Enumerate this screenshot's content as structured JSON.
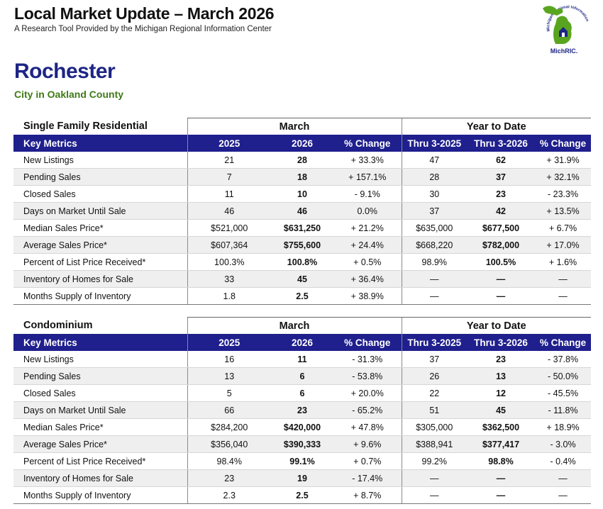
{
  "header": {
    "title": "Local Market Update – March 2026",
    "subtitle": "A Research Tool Provided by the Michigan Regional Information Center",
    "logo_text": "MichRIC.",
    "logo_arc_text": "Michigan Regional Information Center"
  },
  "location": {
    "city": "Rochester",
    "county": "City in Oakland County"
  },
  "tables": [
    {
      "section": "Single Family Residential",
      "group_month": "March",
      "group_ytd": "Year to Date",
      "columns": [
        "Key Metrics",
        "2025",
        "2026",
        "% Change",
        "Thru 3-2025",
        "Thru 3-2026",
        "% Change"
      ],
      "rows": [
        [
          "New Listings",
          "21",
          "28",
          "+ 33.3%",
          "47",
          "62",
          "+ 31.9%"
        ],
        [
          "Pending Sales",
          "7",
          "18",
          "+ 157.1%",
          "28",
          "37",
          "+ 32.1%"
        ],
        [
          "Closed Sales",
          "11",
          "10",
          "- 9.1%",
          "30",
          "23",
          "- 23.3%"
        ],
        [
          "Days on Market Until Sale",
          "46",
          "46",
          "0.0%",
          "37",
          "42",
          "+ 13.5%"
        ],
        [
          "Median Sales Price*",
          "$521,000",
          "$631,250",
          "+ 21.2%",
          "$635,000",
          "$677,500",
          "+ 6.7%"
        ],
        [
          "Average Sales Price*",
          "$607,364",
          "$755,600",
          "+ 24.4%",
          "$668,220",
          "$782,000",
          "+ 17.0%"
        ],
        [
          "Percent of List Price Received*",
          "100.3%",
          "100.8%",
          "+ 0.5%",
          "98.9%",
          "100.5%",
          "+ 1.6%"
        ],
        [
          "Inventory of Homes for Sale",
          "33",
          "45",
          "+ 36.4%",
          "—",
          "—",
          "—"
        ],
        [
          "Months Supply of Inventory",
          "1.8",
          "2.5",
          "+ 38.9%",
          "—",
          "—",
          "—"
        ]
      ]
    },
    {
      "section": "Condominium",
      "group_month": "March",
      "group_ytd": "Year to Date",
      "columns": [
        "Key Metrics",
        "2025",
        "2026",
        "% Change",
        "Thru 3-2025",
        "Thru 3-2026",
        "% Change"
      ],
      "rows": [
        [
          "New Listings",
          "16",
          "11",
          "- 31.3%",
          "37",
          "23",
          "- 37.8%"
        ],
        [
          "Pending Sales",
          "13",
          "6",
          "- 53.8%",
          "26",
          "13",
          "- 50.0%"
        ],
        [
          "Closed Sales",
          "5",
          "6",
          "+ 20.0%",
          "22",
          "12",
          "- 45.5%"
        ],
        [
          "Days on Market Until Sale",
          "66",
          "23",
          "- 65.2%",
          "51",
          "45",
          "- 11.8%"
        ],
        [
          "Median Sales Price*",
          "$284,200",
          "$420,000",
          "+ 47.8%",
          "$305,000",
          "$362,500",
          "+ 18.9%"
        ],
        [
          "Average Sales Price*",
          "$356,040",
          "$390,333",
          "+ 9.6%",
          "$388,941",
          "$377,417",
          "- 3.0%"
        ],
        [
          "Percent of List Price Received*",
          "98.4%",
          "99.1%",
          "+ 0.7%",
          "99.2%",
          "98.8%",
          "- 0.4%"
        ],
        [
          "Inventory of Homes for Sale",
          "23",
          "19",
          "- 17.4%",
          "—",
          "—",
          "—"
        ],
        [
          "Months Supply of Inventory",
          "2.3",
          "2.5",
          "+ 8.7%",
          "—",
          "—",
          "—"
        ]
      ]
    }
  ],
  "colors": {
    "header_band": "#1f1f8e",
    "city_title": "#1d2585",
    "county_text": "#3f7a18",
    "logo_green": "#5aa51f"
  }
}
